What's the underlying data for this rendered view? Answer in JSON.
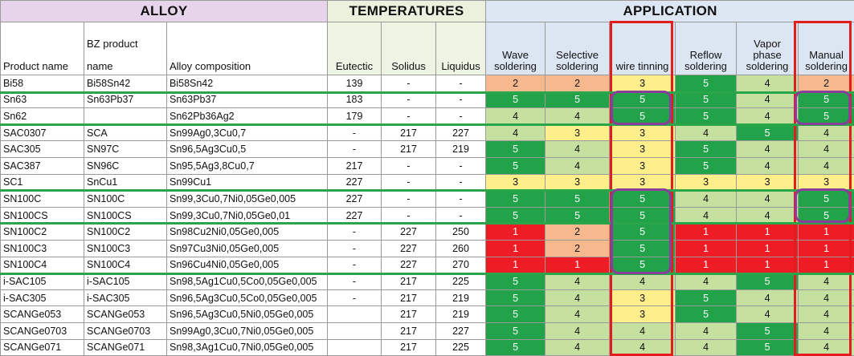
{
  "groups": {
    "alloy": "ALLOY",
    "temperatures": "TEMPERATURES",
    "application": "APPLICATION"
  },
  "headers": {
    "product_name": "Product name",
    "bz_line1": "BZ product",
    "bz_line2": "name",
    "composition": "Alloy composition",
    "eutectic": "Eutectic",
    "solidus": "Solidus",
    "liquidus": "Liquidus",
    "wave": "Wave soldering",
    "selective": "Selective soldering",
    "wire": "wire tinning",
    "reflow": "Reflow soldering",
    "vapor": "Vapor phase soldering",
    "manual": "Manual soldering"
  },
  "rows": [
    {
      "product": "Bi58",
      "bz": "Bi58Sn42",
      "comp": "Bi58Sn42",
      "eut": "139",
      "sol": "-",
      "liq": "-",
      "scores": [
        "2",
        "2",
        "3",
        "5",
        "4",
        "2"
      ]
    },
    {
      "product": "Sn63",
      "bz": "Sn63Pb37",
      "comp": "Sn63Pb37",
      "eut": "183",
      "sol": "-",
      "liq": "-",
      "scores": [
        "5",
        "5",
        "5",
        "5",
        "4",
        "5"
      ]
    },
    {
      "product": "Sn62",
      "bz": "",
      "comp": "Sn62Pb36Ag2",
      "eut": "179",
      "sol": "-",
      "liq": "-",
      "scores": [
        "4",
        "4",
        "5",
        "5",
        "4",
        "5"
      ]
    },
    {
      "product": "SAC0307",
      "bz": "SCA",
      "comp": "Sn99Ag0,3Cu0,7",
      "eut": "-",
      "sol": "217",
      "liq": "227",
      "scores": [
        "4",
        "3",
        "3",
        "4",
        "5",
        "4"
      ]
    },
    {
      "product": "SAC305",
      "bz": "SN97C",
      "comp": "Sn96,5Ag3Cu0,5",
      "eut": "-",
      "sol": "217",
      "liq": "219",
      "scores": [
        "5",
        "4",
        "3",
        "5",
        "4",
        "4"
      ]
    },
    {
      "product": "SAC387",
      "bz": "SN96C",
      "comp": "Sn95,5Ag3,8Cu0,7",
      "eut": "217",
      "sol": "-",
      "liq": "-",
      "scores": [
        "5",
        "4",
        "3",
        "5",
        "4",
        "4"
      ]
    },
    {
      "product": "SC1",
      "bz": "SnCu1",
      "comp": "Sn99Cu1",
      "eut": "227",
      "sol": "-",
      "liq": "-",
      "scores": [
        "3",
        "3",
        "3",
        "3",
        "3",
        "3"
      ]
    },
    {
      "product": "SN100C",
      "bz": "SN100C",
      "comp": "Sn99,3Cu0,7Ni0,05Ge0,005",
      "eut": "227",
      "sol": "-",
      "liq": "-",
      "scores": [
        "5",
        "5",
        "5",
        "4",
        "4",
        "5"
      ]
    },
    {
      "product": "SN100CS",
      "bz": "SN100CS",
      "comp": "Sn99,3Cu0,7Ni0,05Ge0,01",
      "eut": "227",
      "sol": "-",
      "liq": "-",
      "scores": [
        "5",
        "5",
        "5",
        "4",
        "4",
        "5"
      ]
    },
    {
      "product": "SN100C2",
      "bz": "SN100C2",
      "comp": "Sn98Cu2Ni0,05Ge0,005",
      "eut": "-",
      "sol": "227",
      "liq": "250",
      "scores": [
        "1",
        "2",
        "5",
        "1",
        "1",
        "1"
      ]
    },
    {
      "product": "SN100C3",
      "bz": "SN100C3",
      "comp": "Sn97Cu3Ni0,05Ge0,005",
      "eut": "-",
      "sol": "227",
      "liq": "260",
      "scores": [
        "1",
        "2",
        "5",
        "1",
        "1",
        "1"
      ]
    },
    {
      "product": "SN100C4",
      "bz": "SN100C4",
      "comp": "Sn96Cu4Ni0,05Ge0,005",
      "eut": "-",
      "sol": "227",
      "liq": "270",
      "scores": [
        "1",
        "1",
        "5",
        "1",
        "1",
        "1"
      ]
    },
    {
      "product": "i-SAC105",
      "bz": "i-SAC105",
      "comp": "Sn98,5Ag1Cu0,5Co0,05Ge0,005",
      "eut": "-",
      "sol": "217",
      "liq": "225",
      "scores": [
        "5",
        "4",
        "4",
        "4",
        "5",
        "4"
      ]
    },
    {
      "product": "i-SAC305",
      "bz": "i-SAC305",
      "comp": "Sn96,5Ag3Cu0,5Co0,05Ge0,005",
      "eut": "-",
      "sol": "217",
      "liq": "219",
      "scores": [
        "5",
        "4",
        "3",
        "5",
        "4",
        "4"
      ]
    },
    {
      "product": "SCANGe053",
      "bz": "SCANGe053",
      "comp": "Sn96,5Ag3Cu0,5Ni0,05Ge0,005",
      "eut": "",
      "sol": "217",
      "liq": "219",
      "scores": [
        "5",
        "4",
        "3",
        "5",
        "4",
        "4"
      ]
    },
    {
      "product": "SCANGe0703",
      "bz": "SCANGe0703",
      "comp": "Sn99Ag0,3Cu0,7Ni0,05Ge0,005",
      "eut": "",
      "sol": "217",
      "liq": "227",
      "scores": [
        "5",
        "4",
        "4",
        "4",
        "5",
        "4"
      ]
    },
    {
      "product": "SCANGe071",
      "bz": "SCANGe071",
      "comp": "Sn98,3Ag1Cu0,7Ni0,05Ge0,005",
      "eut": "",
      "sol": "217",
      "liq": "225",
      "scores": [
        "5",
        "4",
        "4",
        "4",
        "5",
        "4"
      ]
    }
  ]
}
